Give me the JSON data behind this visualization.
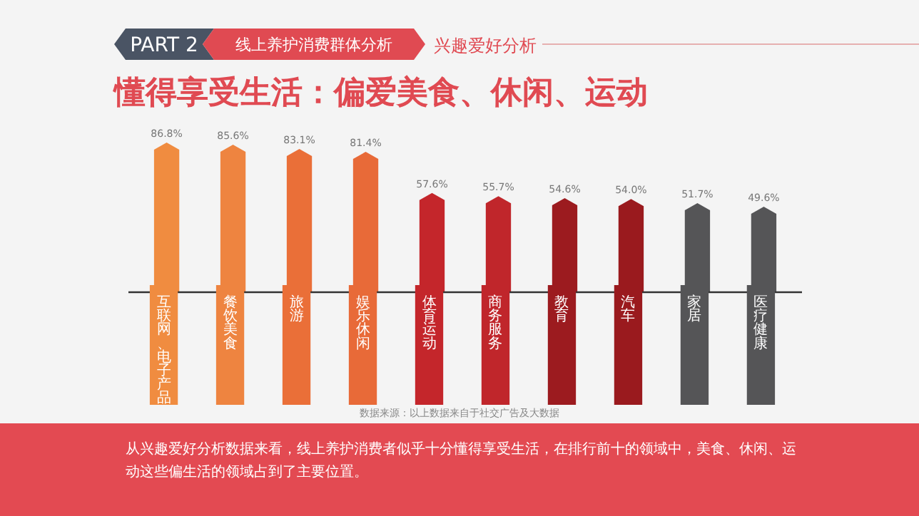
{
  "chart_data": {
    "type": "bar",
    "title": "懂得享受生活：偏爱美食、休闲、运动",
    "categories": [
      "互联网、电子产品",
      "餐饮美食",
      "旅游",
      "娱乐休闲",
      "体育运动",
      "商务服务",
      "教育",
      "汽车",
      "家居",
      "医疗健康"
    ],
    "values": [
      86.8,
      85.6,
      83.1,
      81.4,
      57.6,
      55.7,
      54.6,
      54.0,
      51.7,
      49.6
    ],
    "value_labels": [
      "86.8%",
      "85.6%",
      "83.1%",
      "81.4%",
      "57.6%",
      "55.7%",
      "54.6%",
      "54.0%",
      "51.7%",
      "49.6%"
    ],
    "colors": [
      "#f08c40",
      "#ee8440",
      "#ea6f38",
      "#e86a38",
      "#c4262b",
      "#c0262b",
      "#9c1b1f",
      "#9a1a1e",
      "#555557",
      "#555557"
    ],
    "annotations": [
      "PART 2",
      "线上养护消费群体分析",
      "兴趣爱好分析",
      "数据来源：以上数据来自于社交广告及大数据",
      "从兴趣爱好分析数据来看，线上养护消费者似乎十分懂得享受生活，在排行前十的领域中，美食、休闲、运动这些偏生活的领域占到了主要位置。"
    ]
  }
}
